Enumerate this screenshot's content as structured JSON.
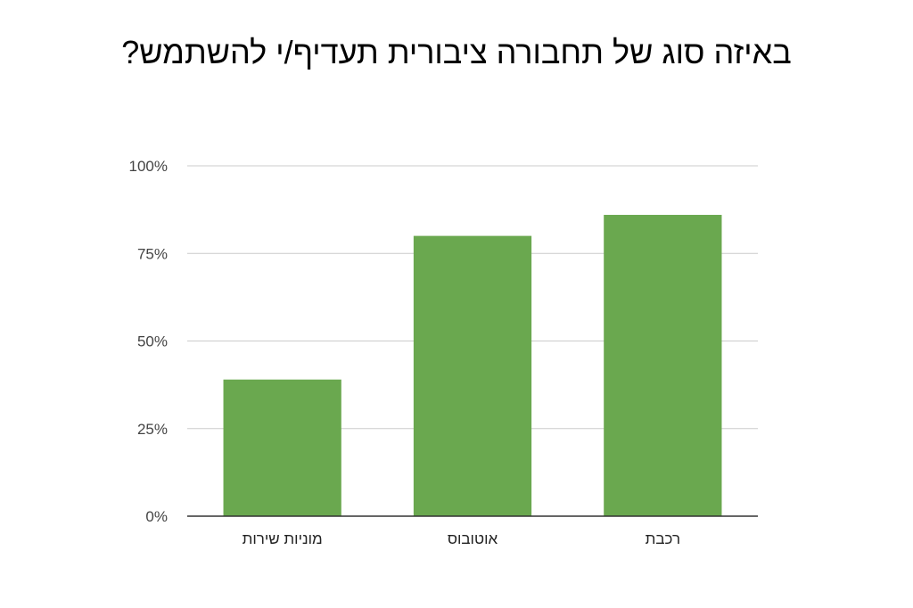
{
  "chart_data": {
    "type": "bar",
    "title": "באיזה סוג של תחבורה ציבורית תעדיף/י להשתמש?",
    "categories": [
      "מוניות שירות",
      "אוטובוס",
      "רכבת"
    ],
    "values": [
      39,
      80,
      86
    ],
    "ylim": [
      0,
      100
    ],
    "yticks": [
      0,
      25,
      50,
      75,
      100
    ],
    "ytick_labels": [
      "0%",
      "25%",
      "50%",
      "75%",
      "100%"
    ],
    "xlabel": "",
    "ylabel": "",
    "grid": true,
    "legend": "none",
    "colors": {
      "bar": "#6aa84f",
      "grid": "#cccccc",
      "axis": "#333333"
    }
  }
}
